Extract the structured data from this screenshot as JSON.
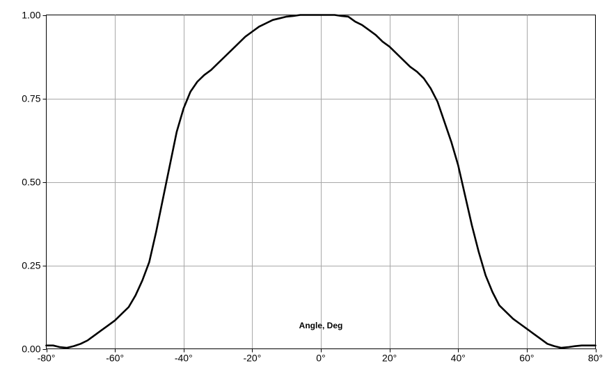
{
  "chart_data": {
    "type": "line",
    "title": "",
    "xlabel": "Angle, Deg",
    "ylabel": "",
    "xlim": [
      -80,
      80
    ],
    "ylim": [
      0,
      1
    ],
    "grid": true,
    "x_ticks": [
      -80,
      -60,
      -40,
      -20,
      0,
      20,
      40,
      60,
      80
    ],
    "x_tick_labels": [
      "-80°",
      "-60°",
      "-40°",
      "-20°",
      "0°",
      "20°",
      "40°",
      "60°",
      "80°"
    ],
    "y_ticks": [
      0,
      0.25,
      0.5,
      0.75,
      1.0
    ],
    "y_tick_labels": [
      "0.00",
      "0.25",
      "0.50",
      "0.75",
      "1.00"
    ],
    "series": [
      {
        "color": "#000000",
        "x": [
          -80,
          -78,
          -76,
          -74,
          -72,
          -70,
          -68,
          -66,
          -64,
          -62,
          -60,
          -58,
          -56,
          -54,
          -52,
          -50,
          -48,
          -46,
          -44,
          -42,
          -40,
          -38,
          -36,
          -34,
          -32,
          -30,
          -28,
          -26,
          -24,
          -22,
          -20,
          -18,
          -16,
          -14,
          -12,
          -10,
          -8,
          -6,
          -4,
          -2,
          0,
          2,
          4,
          6,
          8,
          10,
          12,
          14,
          16,
          18,
          20,
          22,
          24,
          26,
          28,
          30,
          32,
          34,
          36,
          38,
          40,
          42,
          44,
          46,
          48,
          50,
          52,
          54,
          56,
          58,
          60,
          62,
          64,
          66,
          68,
          70,
          72,
          74,
          76,
          78,
          80
        ],
        "y": [
          0.01,
          0.01,
          0.005,
          0.003,
          0.008,
          0.015,
          0.025,
          0.04,
          0.055,
          0.07,
          0.085,
          0.105,
          0.125,
          0.16,
          0.205,
          0.26,
          0.35,
          0.45,
          0.55,
          0.65,
          0.72,
          0.77,
          0.8,
          0.82,
          0.835,
          0.855,
          0.875,
          0.895,
          0.915,
          0.935,
          0.95,
          0.965,
          0.975,
          0.985,
          0.99,
          0.995,
          0.997,
          1.0,
          1.0,
          1.0,
          1.0,
          1.0,
          1.0,
          0.997,
          0.995,
          0.98,
          0.97,
          0.955,
          0.94,
          0.92,
          0.905,
          0.885,
          0.865,
          0.845,
          0.83,
          0.81,
          0.78,
          0.74,
          0.68,
          0.62,
          0.55,
          0.46,
          0.37,
          0.29,
          0.22,
          0.17,
          0.13,
          0.11,
          0.09,
          0.075,
          0.06,
          0.045,
          0.03,
          0.015,
          0.008,
          0.003,
          0.005,
          0.008,
          0.01,
          0.01,
          0.01
        ]
      }
    ]
  }
}
